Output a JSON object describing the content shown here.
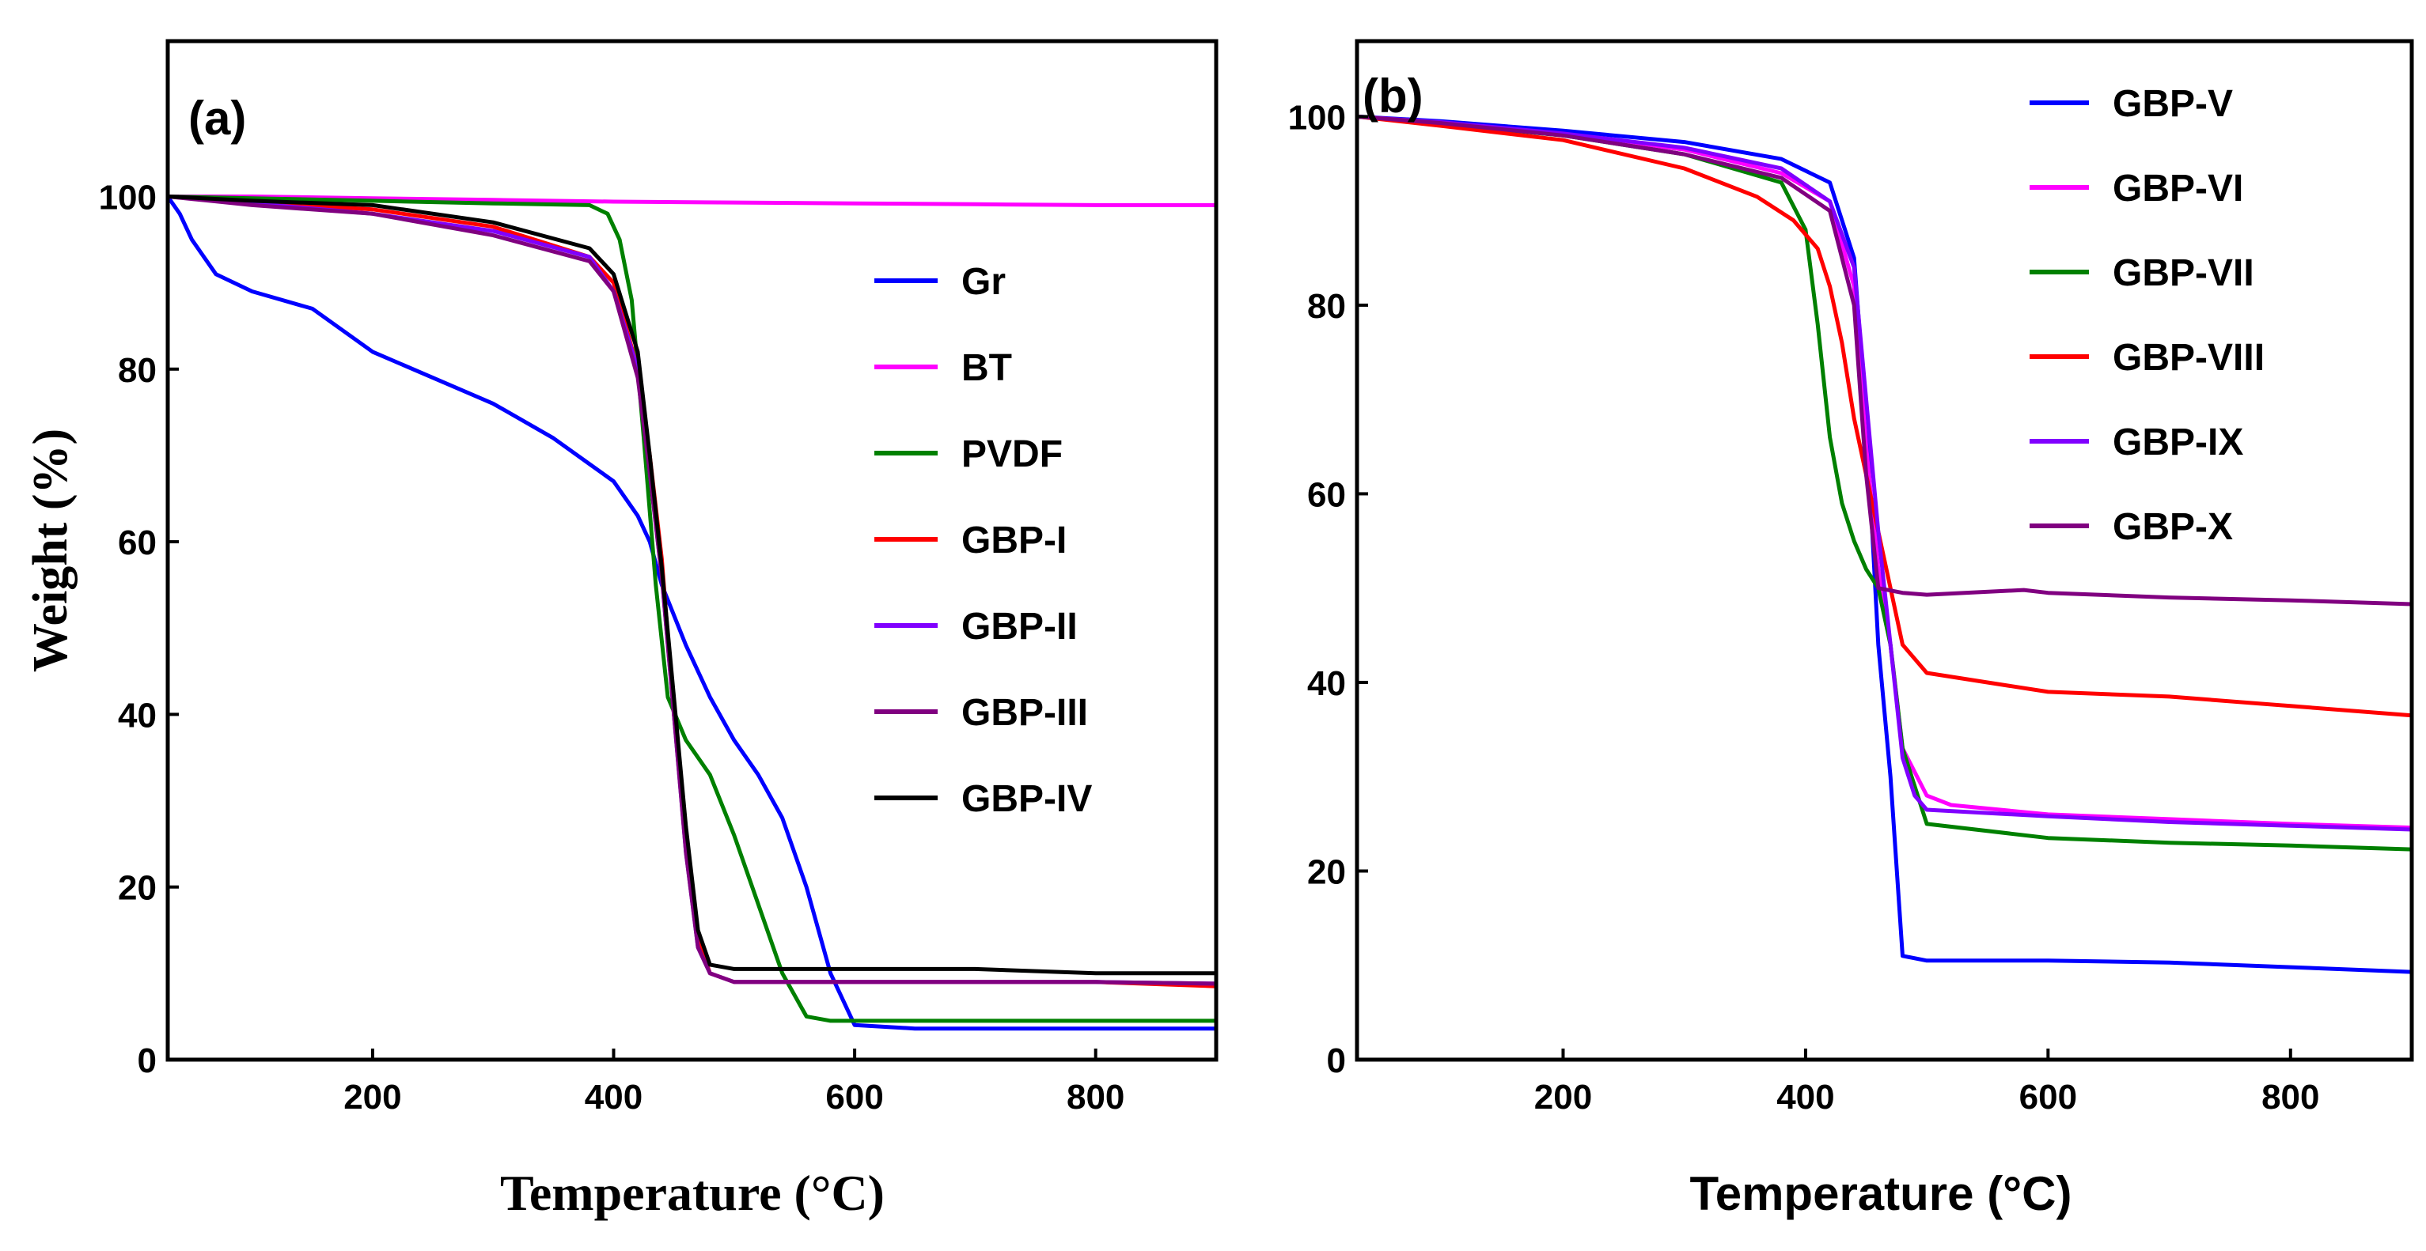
{
  "chart_data": [
    {
      "type": "line",
      "panel_label": "(a)",
      "xlabel": "Temperature (°C)",
      "ylabel": "Weight (%)",
      "xlim": [
        30,
        900
      ],
      "ylim": [
        0,
        118
      ],
      "xticks": [
        200,
        400,
        600,
        800
      ],
      "yticks": [
        0,
        20,
        40,
        60,
        80,
        100
      ],
      "legend_position": "right",
      "series": [
        {
          "name": "Gr",
          "color": "#0000ff",
          "x": [
            30,
            40,
            50,
            70,
            100,
            150,
            200,
            250,
            300,
            350,
            380,
            400,
            420,
            430,
            440,
            460,
            480,
            500,
            520,
            540,
            560,
            580,
            600,
            650,
            700,
            800,
            900
          ],
          "y": [
            100,
            98,
            95,
            91,
            89,
            87,
            82,
            79,
            76,
            72,
            69,
            67,
            63,
            60,
            55,
            48,
            42,
            37,
            33,
            28,
            20,
            10,
            4,
            3.6,
            3.6,
            3.6,
            3.6
          ]
        },
        {
          "name": "BT",
          "color": "#ff00ff",
          "x": [
            30,
            100,
            200,
            300,
            400,
            500,
            600,
            700,
            800,
            900
          ],
          "y": [
            100,
            100,
            99.8,
            99.6,
            99.4,
            99.3,
            99.2,
            99.1,
            99.0,
            99.0
          ]
        },
        {
          "name": "PVDF",
          "color": "#008000",
          "x": [
            30,
            100,
            200,
            300,
            380,
            395,
            405,
            415,
            425,
            435,
            445,
            460,
            480,
            500,
            520,
            540,
            560,
            580,
            600,
            700,
            800,
            900
          ],
          "y": [
            100,
            99.8,
            99.5,
            99.2,
            99,
            98,
            95,
            88,
            72,
            55,
            42,
            37,
            33,
            26,
            18,
            10,
            5,
            4.5,
            4.5,
            4.5,
            4.5,
            4.5
          ]
        },
        {
          "name": "GBP-I",
          "color": "#ff0000",
          "x": [
            30,
            100,
            200,
            300,
            380,
            400,
            420,
            430,
            440,
            450,
            460,
            470,
            480,
            500,
            600,
            700,
            800,
            900
          ],
          "y": [
            100,
            99.3,
            98.5,
            96.5,
            93,
            90,
            80,
            70,
            58,
            40,
            26,
            14,
            10,
            9,
            9,
            9,
            9,
            8.5
          ]
        },
        {
          "name": "GBP-II",
          "color": "#8000ff",
          "x": [
            30,
            100,
            200,
            300,
            380,
            400,
            420,
            430,
            440,
            450,
            460,
            470,
            480,
            500,
            600,
            700,
            800,
            900
          ],
          "y": [
            100,
            99.2,
            98,
            96,
            93,
            89,
            80,
            68,
            56,
            40,
            24,
            13,
            10,
            9,
            9,
            9,
            9,
            8.8
          ]
        },
        {
          "name": "GBP-III",
          "color": "#800080",
          "x": [
            30,
            100,
            200,
            300,
            380,
            400,
            420,
            430,
            440,
            450,
            460,
            470,
            480,
            500,
            600,
            700,
            800,
            900
          ],
          "y": [
            100,
            99,
            98,
            95.5,
            92.5,
            89,
            79,
            68,
            56,
            40,
            24,
            13,
            10,
            9,
            9,
            9,
            9,
            8.8
          ]
        },
        {
          "name": "GBP-IV",
          "color": "#000000",
          "x": [
            30,
            100,
            200,
            300,
            380,
            400,
            420,
            430,
            440,
            450,
            460,
            470,
            480,
            500,
            600,
            700,
            800,
            900
          ],
          "y": [
            100,
            99.5,
            99,
            97,
            94,
            91,
            82,
            70,
            57,
            42,
            27,
            15,
            11,
            10.5,
            10.5,
            10.5,
            10,
            10
          ]
        }
      ],
      "legend": [
        "Gr",
        "BT",
        "PVDF",
        "GBP-I",
        "GBP-II",
        "GBP-III",
        "GBP-IV"
      ]
    },
    {
      "type": "line",
      "panel_label": "(b)",
      "xlabel": "Temperature (°C)",
      "ylabel": "",
      "xlim": [
        30,
        900
      ],
      "ylim": [
        0,
        108
      ],
      "xticks": [
        200,
        400,
        600,
        800
      ],
      "yticks": [
        0,
        20,
        40,
        60,
        80,
        100
      ],
      "legend_position": "top-right",
      "series": [
        {
          "name": "GBP-V",
          "color": "#0000ff",
          "x": [
            30,
            100,
            200,
            300,
            380,
            420,
            440,
            450,
            460,
            470,
            480,
            500,
            600,
            700,
            800,
            900
          ],
          "y": [
            100,
            99.5,
            98.5,
            97.3,
            95.5,
            93,
            85,
            68,
            44,
            30,
            11,
            10.5,
            10.5,
            10.3,
            9.8,
            9.3
          ]
        },
        {
          "name": "GBP-VI",
          "color": "#ff00ff",
          "x": [
            30,
            100,
            200,
            300,
            380,
            420,
            440,
            450,
            460,
            470,
            480,
            500,
            520,
            600,
            700,
            800,
            900
          ],
          "y": [
            100,
            99.3,
            98,
            96.5,
            94,
            91,
            82,
            65,
            52,
            44,
            33,
            28,
            27,
            26,
            25.5,
            25,
            24.6
          ]
        },
        {
          "name": "GBP-VII",
          "color": "#008000",
          "x": [
            30,
            100,
            200,
            300,
            380,
            400,
            410,
            420,
            430,
            440,
            450,
            460,
            470,
            480,
            500,
            600,
            700,
            800,
            900
          ],
          "y": [
            100,
            99.2,
            98,
            96,
            93,
            88,
            78,
            66,
            59,
            55,
            52,
            50,
            44,
            33,
            25,
            23.5,
            23,
            22.7,
            22.3
          ]
        },
        {
          "name": "GBP-VIII",
          "color": "#ff0000",
          "x": [
            30,
            100,
            200,
            300,
            360,
            390,
            410,
            420,
            430,
            440,
            450,
            460,
            470,
            480,
            500,
            550,
            600,
            700,
            800,
            900
          ],
          "y": [
            100,
            99,
            97.5,
            94.5,
            91.5,
            89,
            86,
            82,
            76,
            68,
            62,
            56,
            50,
            44,
            41,
            40,
            39,
            38.5,
            37.5,
            36.5
          ]
        },
        {
          "name": "GBP-IX",
          "color": "#8000ff",
          "x": [
            30,
            100,
            200,
            300,
            380,
            420,
            440,
            450,
            460,
            470,
            480,
            490,
            500,
            600,
            700,
            800,
            900
          ],
          "y": [
            100,
            99.4,
            98.2,
            96.7,
            94.5,
            91,
            84,
            70,
            56,
            44,
            32,
            28,
            26.5,
            25.8,
            25.2,
            24.8,
            24.4
          ]
        },
        {
          "name": "GBP-X",
          "color": "#800080",
          "x": [
            30,
            100,
            200,
            300,
            380,
            420,
            440,
            450,
            460,
            480,
            500,
            580,
            600,
            700,
            800,
            900
          ],
          "y": [
            100,
            99.3,
            98,
            96,
            93.5,
            90,
            80,
            62,
            50,
            49.5,
            49.3,
            49.8,
            49.5,
            49,
            48.7,
            48.3
          ]
        }
      ],
      "legend": [
        "GBP-V",
        "GBP-VI",
        "GBP-VII",
        "GBP-VIII",
        "GBP-IX",
        "GBP-X"
      ]
    }
  ]
}
